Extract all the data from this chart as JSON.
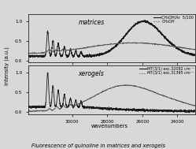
{
  "title": "Fluorescence of quinoline in matrices and xerogels",
  "xlabel": "wavenumbers",
  "ylabel": "intensity (a.u.)",
  "xmin": 23000,
  "xmax": 32500,
  "xticks": [
    30000,
    28000,
    26000,
    24000
  ],
  "yticks": [
    0.0,
    0.5,
    1.0
  ],
  "top_label": "matrices",
  "bottom_label": "xerogels",
  "legend_top": [
    "CH₃OH/Ar  5/100",
    "CH₃OH"
  ],
  "legend_bottom": [
    "MT(3/1) exc.32092 cm⁻¹",
    "MT(3/1) exc.31395 cm⁻¹"
  ],
  "bg_color": "#d8d8d8",
  "panel_bg": "#d8d8d8",
  "line_color_solid": "#1a1a1a",
  "line_color_dashed": "#555555"
}
